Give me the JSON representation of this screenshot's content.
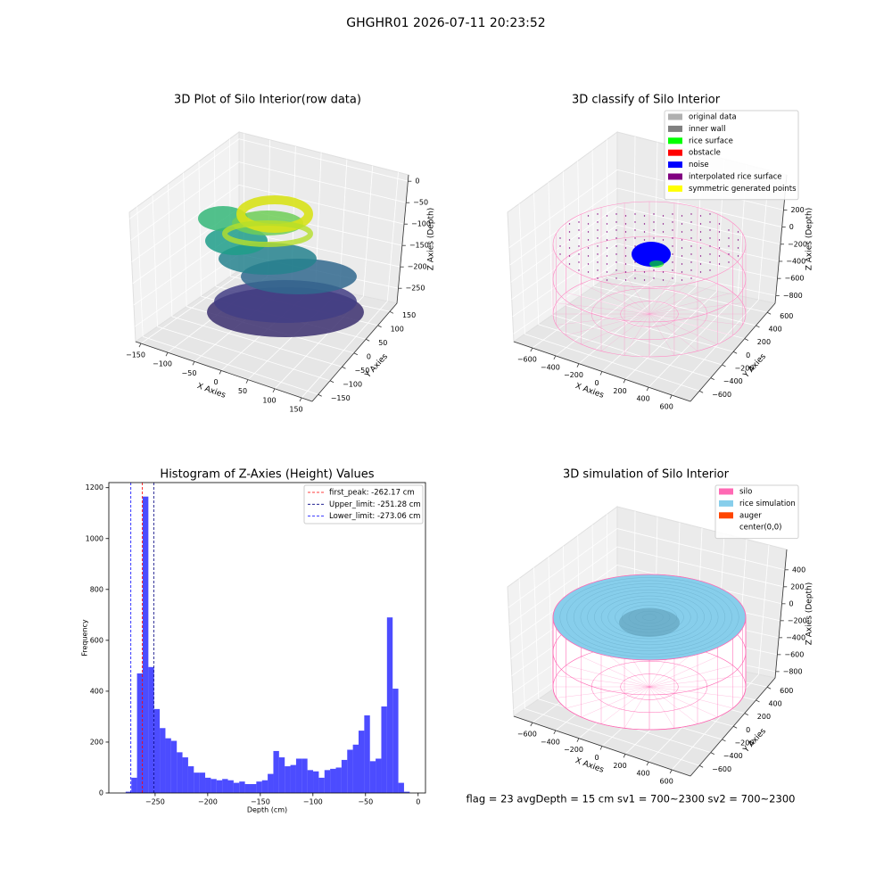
{
  "title": "GHGHR01 2026-07-11 20:23:52",
  "footer": "flag = 23  avgDepth = 15 cm    sv1 = 700~2300  sv2 = 700~2300",
  "chart_data": [
    {
      "type": "scatter3d",
      "title": "3D Plot of Silo Interior(row data)",
      "xlabel": "X Axies",
      "ylabel": "Y Axies",
      "zlabel": "Z Axies (Depth)",
      "xlim": [
        -160,
        170
      ],
      "ylim": [
        -175,
        180
      ],
      "zlim": [
        -285,
        15
      ],
      "xticks": [
        {
          "value": -150,
          "label": "−150"
        },
        {
          "value": -100,
          "label": "−100"
        },
        {
          "value": -50,
          "label": "−50"
        },
        0,
        50,
        100,
        150
      ],
      "yticks": [
        {
          "value": -150,
          "label": "−150"
        },
        {
          "value": -100,
          "label": "−100"
        },
        {
          "value": -50,
          "label": "−50"
        },
        0,
        50,
        100,
        150
      ],
      "zticks": [
        0,
        {
          "value": -50,
          "label": "−50"
        },
        {
          "value": -100,
          "label": "−100"
        },
        {
          "value": -150,
          "label": "−150"
        },
        {
          "value": -200,
          "label": "−200"
        },
        {
          "value": -250,
          "label": "−250"
        }
      ]
    },
    {
      "type": "scatter3d",
      "title": "3D classify of Silo Interior",
      "xlabel": "X Axies",
      "ylabel": "Y Axies",
      "zlabel": "Z Axies (Depth)",
      "xlim": [
        -760,
        760
      ],
      "ylim": [
        -760,
        740
      ],
      "zlim": [
        -890,
        610
      ],
      "xticks": [
        {
          "value": -600,
          "label": "−600"
        },
        {
          "value": -400,
          "label": "−400"
        },
        {
          "value": -200,
          "label": "−200"
        },
        0,
        200,
        400,
        600
      ],
      "yticks": [
        {
          "value": -600,
          "label": "−600"
        },
        {
          "value": -400,
          "label": "−400"
        },
        {
          "value": -200,
          "label": "−200"
        },
        0,
        200,
        400,
        600
      ],
      "zticks": [
        200,
        0,
        {
          "value": -200,
          "label": "−200"
        },
        {
          "value": -400,
          "label": "−400"
        },
        {
          "value": -600,
          "label": "−600"
        },
        {
          "value": -800,
          "label": "−800"
        }
      ],
      "legend_loc": "upper right",
      "legend": [
        {
          "name": "original data",
          "color": "#b0b0b0"
        },
        {
          "name": "inner wall",
          "color": "#808080"
        },
        {
          "name": "rice surface",
          "color": "#00ff00"
        },
        {
          "name": "obstacle",
          "color": "#ff0000"
        },
        {
          "name": "noise",
          "color": "#0000ff"
        },
        {
          "name": "interpolated rice surface",
          "color": "#800080"
        },
        {
          "name": "symmetric generated points",
          "color": "#ffff00"
        }
      ]
    },
    {
      "type": "histogram",
      "title": "Histogram of Z-Axies (Height) Values",
      "xlabel": "Depth (cm)",
      "ylabel": "Frequency",
      "color": "#0000ff",
      "bins": [
        -278,
        -272.6,
        -267.2,
        -261.8,
        -256.4,
        -251,
        -245.6,
        -240.2,
        -234.8,
        -229.4,
        -224,
        -218.6,
        -213.2,
        -207.8,
        -202.4,
        -197,
        -191.6,
        -186.2,
        -180.8,
        -175.4,
        -170,
        -164.6,
        -159.2,
        -153.8,
        -148.4,
        -143,
        -137.6,
        -132.2,
        -126.8,
        -121.4,
        -116,
        -110.6,
        -105.2,
        -99.8,
        -94.4,
        -89,
        -83.6,
        -78.2,
        -72.8,
        -67.4,
        -62,
        -56.6,
        -51.2,
        -45.8,
        -40.4,
        -35,
        -29.6,
        -24.2,
        -18.8,
        -13.4,
        -8
      ],
      "counts": [
        5,
        60,
        470,
        1165,
        495,
        330,
        255,
        215,
        205,
        160,
        140,
        105,
        80,
        80,
        60,
        55,
        50,
        55,
        50,
        40,
        45,
        35,
        35,
        45,
        50,
        75,
        165,
        140,
        105,
        110,
        135,
        135,
        90,
        85,
        60,
        90,
        95,
        100,
        130,
        170,
        190,
        245,
        305,
        125,
        135,
        340,
        690,
        410,
        40,
        5
      ],
      "xlim": [
        -294,
        7
      ],
      "ylim": [
        0,
        1220
      ],
      "xticks": [
        {
          "value": -250,
          "label": "−250"
        },
        {
          "value": -200,
          "label": "−200"
        },
        {
          "value": -150,
          "label": "−150"
        },
        {
          "value": -100,
          "label": "−100"
        },
        {
          "value": -50,
          "label": "−50"
        },
        0
      ],
      "yticks": [
        0,
        200,
        400,
        600,
        800,
        1000,
        1200
      ],
      "legend_loc": "upper right",
      "lines": [
        {
          "label": "first_peak: -262.17 cm",
          "value": -262.17,
          "color": "#ff0000"
        },
        {
          "label": "Upper_limit: -251.28 cm",
          "value": -251.28,
          "color": "#000080"
        },
        {
          "label": "Lower_limit: -273.06 cm",
          "value": -273.06,
          "color": "#0000ff"
        }
      ]
    },
    {
      "type": "surface3d",
      "title": "3D simulation of Silo Interior",
      "xlabel": "X Axies",
      "ylabel": "Y Axies",
      "zlabel": "Z Axies (Depth)",
      "xlim": [
        -760,
        760
      ],
      "ylim": [
        -760,
        740
      ],
      "zlim": [
        -875,
        640
      ],
      "xticks": [
        {
          "value": -600,
          "label": "−600"
        },
        {
          "value": -400,
          "label": "−400"
        },
        {
          "value": -200,
          "label": "−200"
        },
        0,
        200,
        400,
        600
      ],
      "yticks": [
        {
          "value": -600,
          "label": "−600"
        },
        {
          "value": -400,
          "label": "−400"
        },
        {
          "value": -200,
          "label": "−200"
        },
        0,
        200,
        400,
        600
      ],
      "zticks": [
        400,
        200,
        0,
        {
          "value": -200,
          "label": "−200"
        },
        {
          "value": -400,
          "label": "−400"
        },
        {
          "value": -600,
          "label": "−600"
        },
        {
          "value": -800,
          "label": "−800"
        }
      ],
      "legend_loc": "upper right",
      "legend": [
        {
          "name": "silo",
          "color": "#ff69b4"
        },
        {
          "name": "rice simulation",
          "color": "#87ceeb"
        },
        {
          "name": "auger",
          "color": "#ff4500"
        },
        {
          "name": "center(0,0)",
          "color": "#ffffff"
        }
      ]
    }
  ]
}
